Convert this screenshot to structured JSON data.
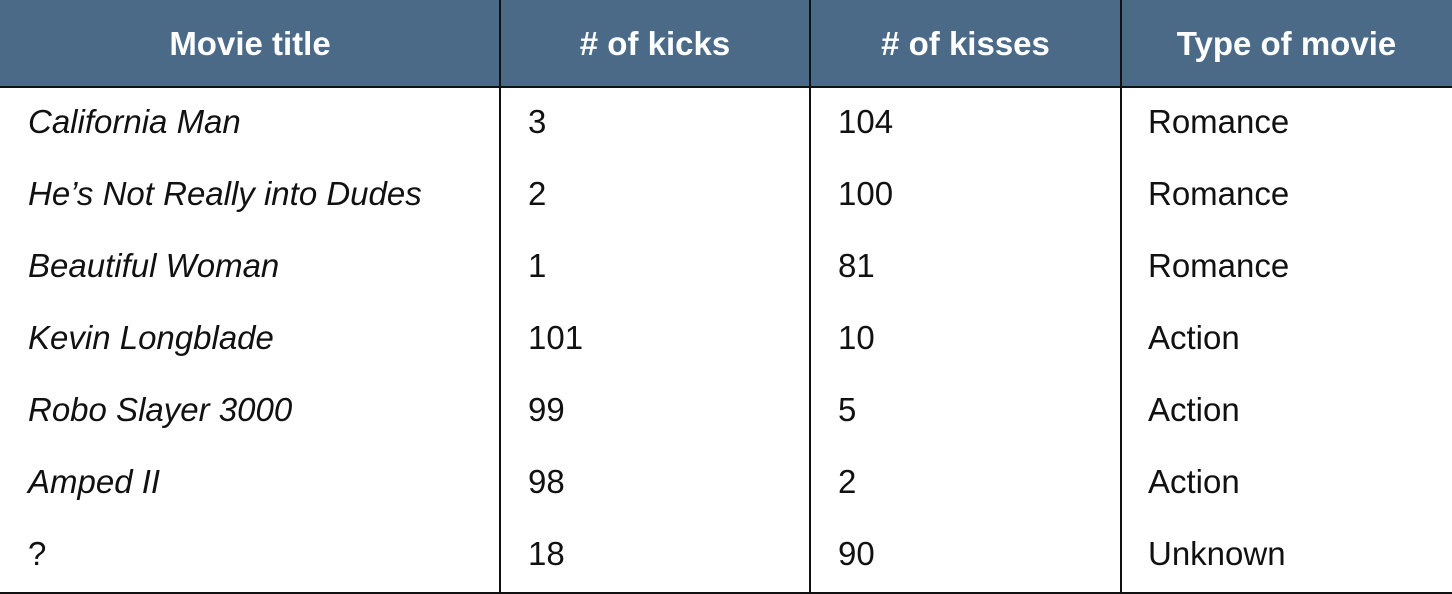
{
  "table": {
    "headers": [
      "Movie title",
      "# of kicks",
      "# of kisses",
      "Type of movie"
    ],
    "rows": [
      [
        "California Man",
        "3",
        "104",
        "Romance"
      ],
      [
        "He’s Not Really into Dudes",
        "2",
        "100",
        "Romance"
      ],
      [
        "Beautiful Woman",
        "1",
        "81",
        "Romance"
      ],
      [
        "Kevin Longblade",
        "101",
        "10",
        "Action"
      ],
      [
        "Robo Slayer 3000",
        "99",
        "5",
        "Action"
      ],
      [
        "Amped II",
        "98",
        "2",
        "Action"
      ],
      [
        "?",
        "18",
        "90",
        "Unknown"
      ]
    ]
  },
  "colors": {
    "header_bg": "#4a6a88",
    "header_text": "#ffffff",
    "body_text": "#111111",
    "rule": "#111111"
  }
}
